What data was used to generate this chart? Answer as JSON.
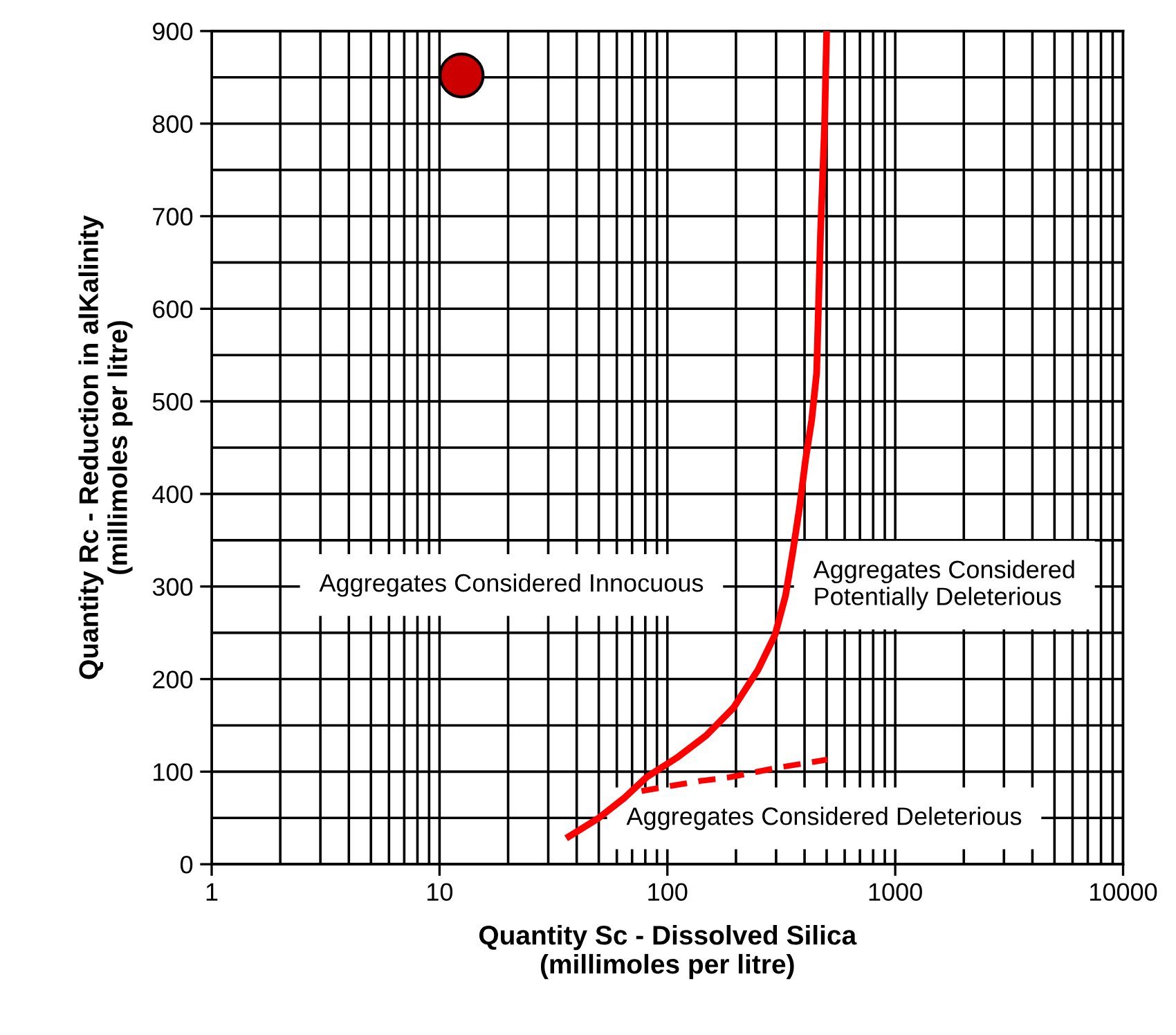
{
  "chart_data": {
    "type": "line",
    "log": "x",
    "grid": true,
    "xlabel": "Quantity Sc - Dissolved Silica\n(millimoles per litre)",
    "ylabel": "Quantity Rc - Reduction in alKalinity\n(millimoles per litre)",
    "xlim": [
      1,
      10000
    ],
    "xticks": [
      1,
      10,
      100,
      1000,
      10000
    ],
    "ylim": [
      0,
      900
    ],
    "yticks": [
      0,
      100,
      200,
      300,
      400,
      500,
      600,
      700,
      800,
      900
    ],
    "series": [
      {
        "line_style": "solid",
        "color": "#ff0000",
        "x": [
          37,
          50,
          65,
          81,
          110,
          148,
          195,
          250,
          297,
          330,
          355,
          380,
          404,
          430,
          452,
          470,
          490,
          500
        ],
        "values": [
          30,
          50,
          72,
          94,
          115,
          139,
          169,
          210,
          248,
          290,
          337,
          385,
          437,
          480,
          531,
          681,
          800,
          900
        ]
      },
      {
        "type": "line",
        "line_style": "dashed",
        "color": "#ff0000",
        "x": [
          77,
          100,
          140,
          188,
          300,
          504
        ],
        "values": [
          79,
          84,
          90,
          94,
          104,
          113
        ]
      },
      {
        "type": "scatter",
        "marker": "circle",
        "color": "#cc0000",
        "x": [
          12.5
        ],
        "values": [
          852
        ]
      }
    ],
    "annotations": [
      "Aggregates Considered Innocuous",
      "Aggregates Considered\nPotentially Deleterious",
      "Aggregates Considered Deleterious"
    ]
  }
}
